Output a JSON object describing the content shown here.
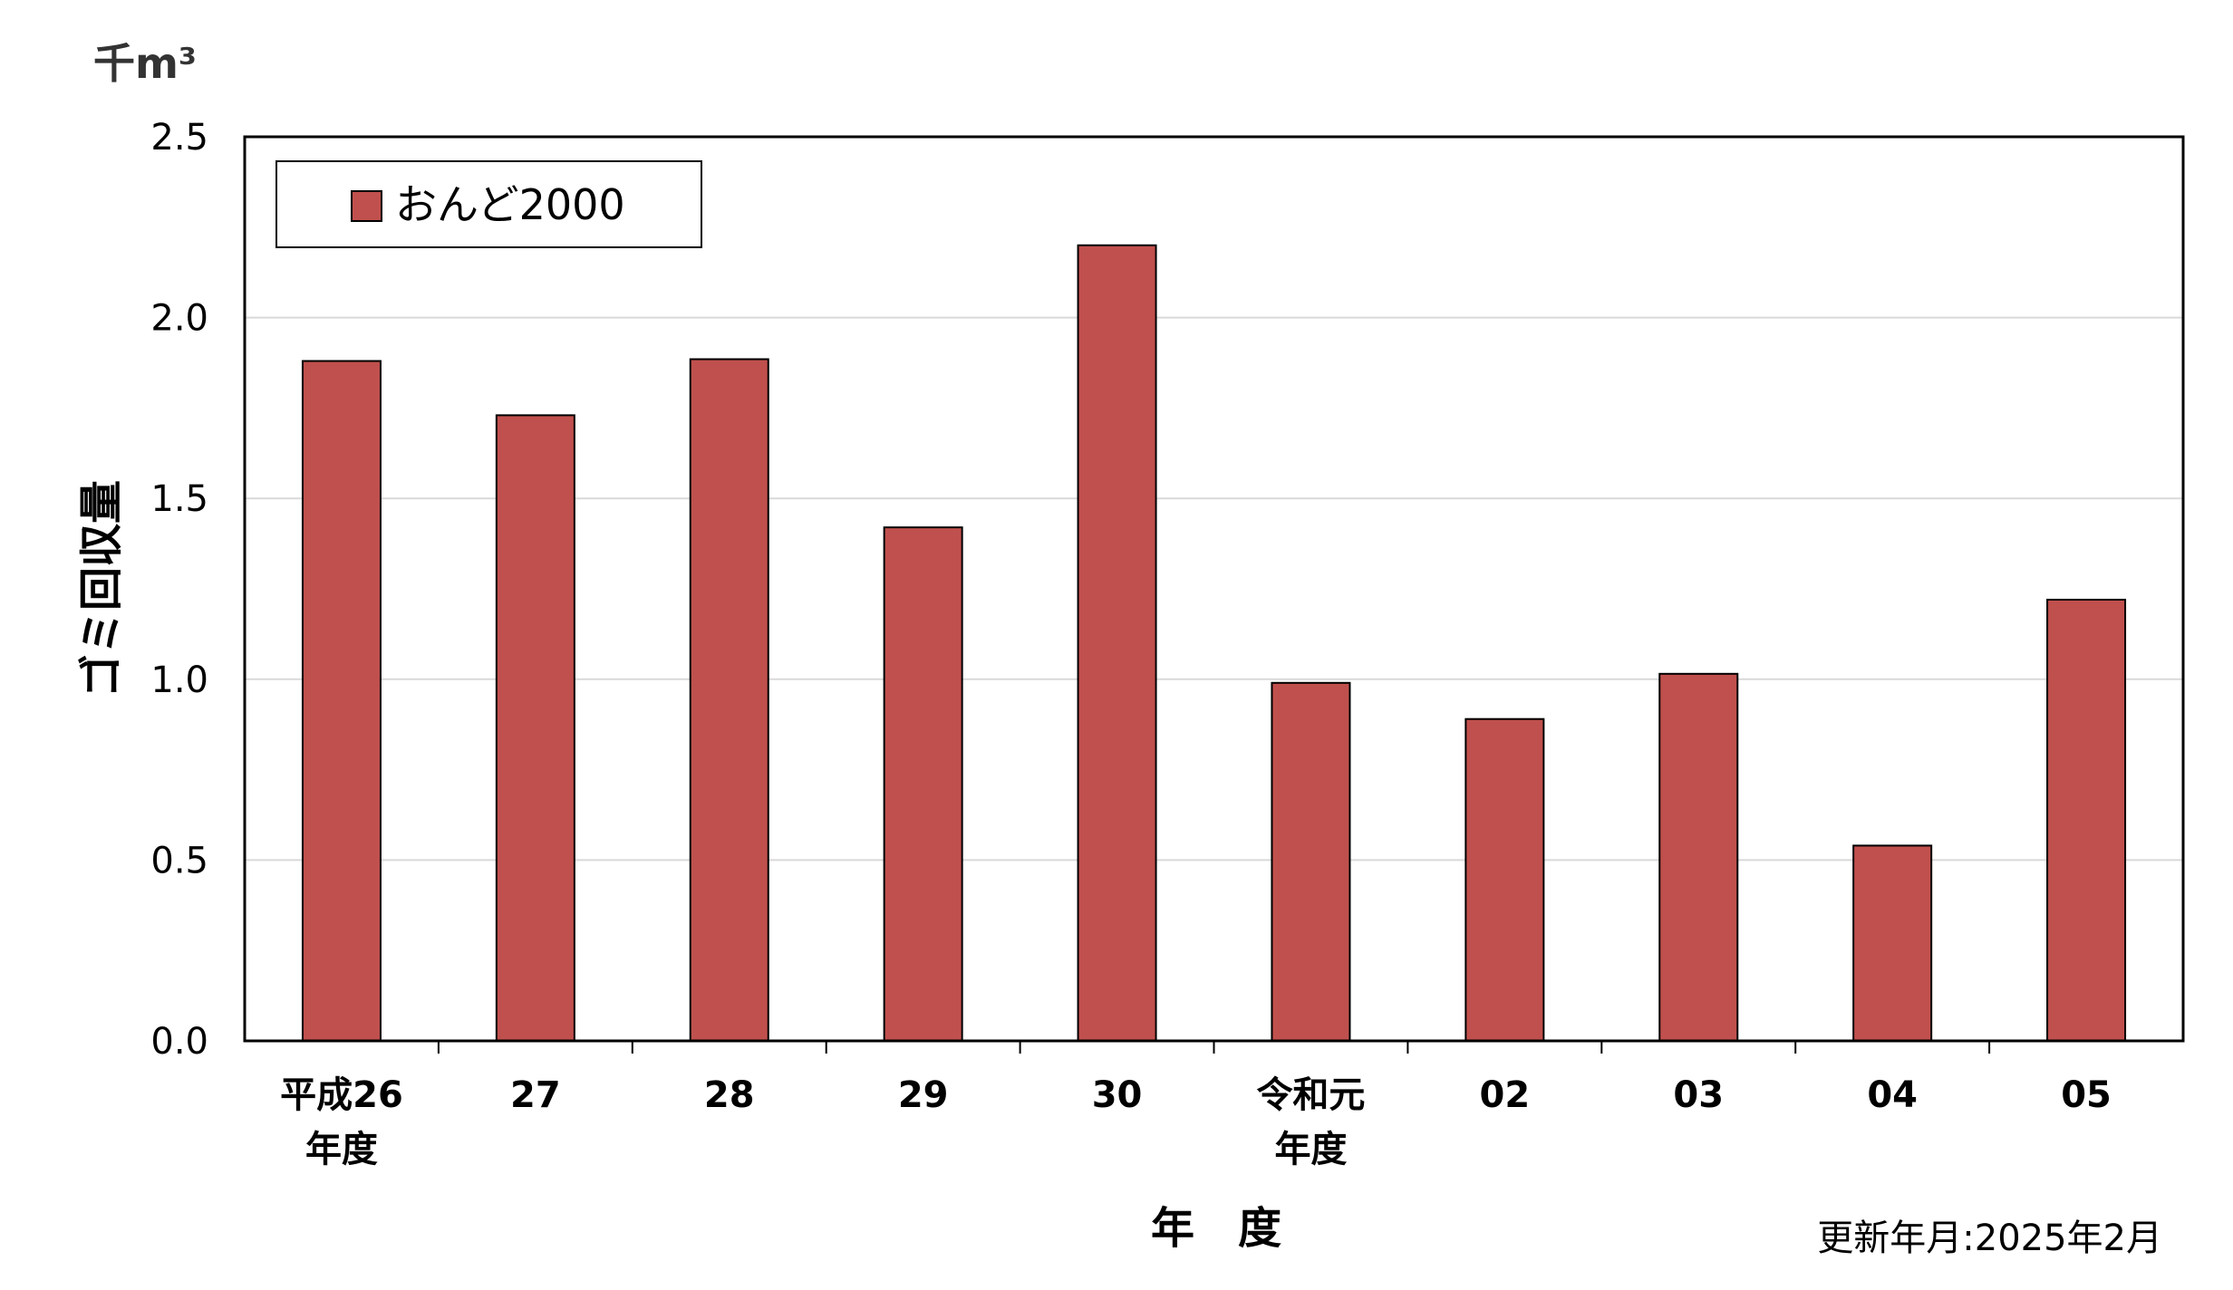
{
  "chart_data": {
    "type": "bar",
    "unit_label": "千m³",
    "ylabel": "ゴミ回収量",
    "xlabel": "年　度",
    "categories": [
      [
        "平成26",
        "年度"
      ],
      [
        "27"
      ],
      [
        "28"
      ],
      [
        "29"
      ],
      [
        "30"
      ],
      [
        "令和元",
        "年度"
      ],
      [
        "02"
      ],
      [
        "03"
      ],
      [
        "04"
      ],
      [
        "05"
      ]
    ],
    "series": [
      {
        "name": "おんど2000",
        "color": "#c0504d",
        "values": [
          1.88,
          1.73,
          1.885,
          1.42,
          2.2,
          0.99,
          0.89,
          1.015,
          0.54,
          1.22
        ]
      }
    ],
    "ylim": [
      0,
      2.5
    ],
    "yticks": [
      "0.0",
      "0.5",
      "1.0",
      "1.5",
      "2.0",
      "2.5"
    ],
    "grid": true,
    "legend_position": "top-left"
  },
  "footer": {
    "updated": "更新年月:2025年2月"
  }
}
